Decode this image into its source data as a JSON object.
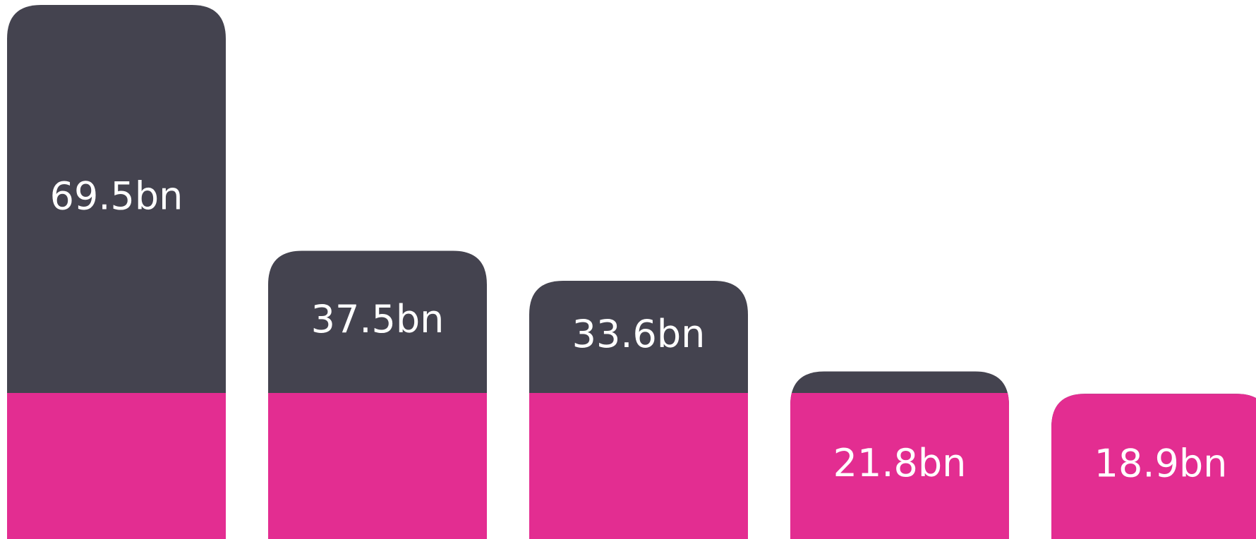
{
  "chart_data": {
    "type": "bar",
    "values": [
      69.5,
      37.5,
      33.6,
      21.8,
      18.9
    ],
    "value_labels": [
      "69.5bn",
      "37.5bn",
      "33.6bn",
      "21.8bn",
      "18.9bn"
    ],
    "color": "#44434f",
    "accent_color": "#e32d91"
  }
}
